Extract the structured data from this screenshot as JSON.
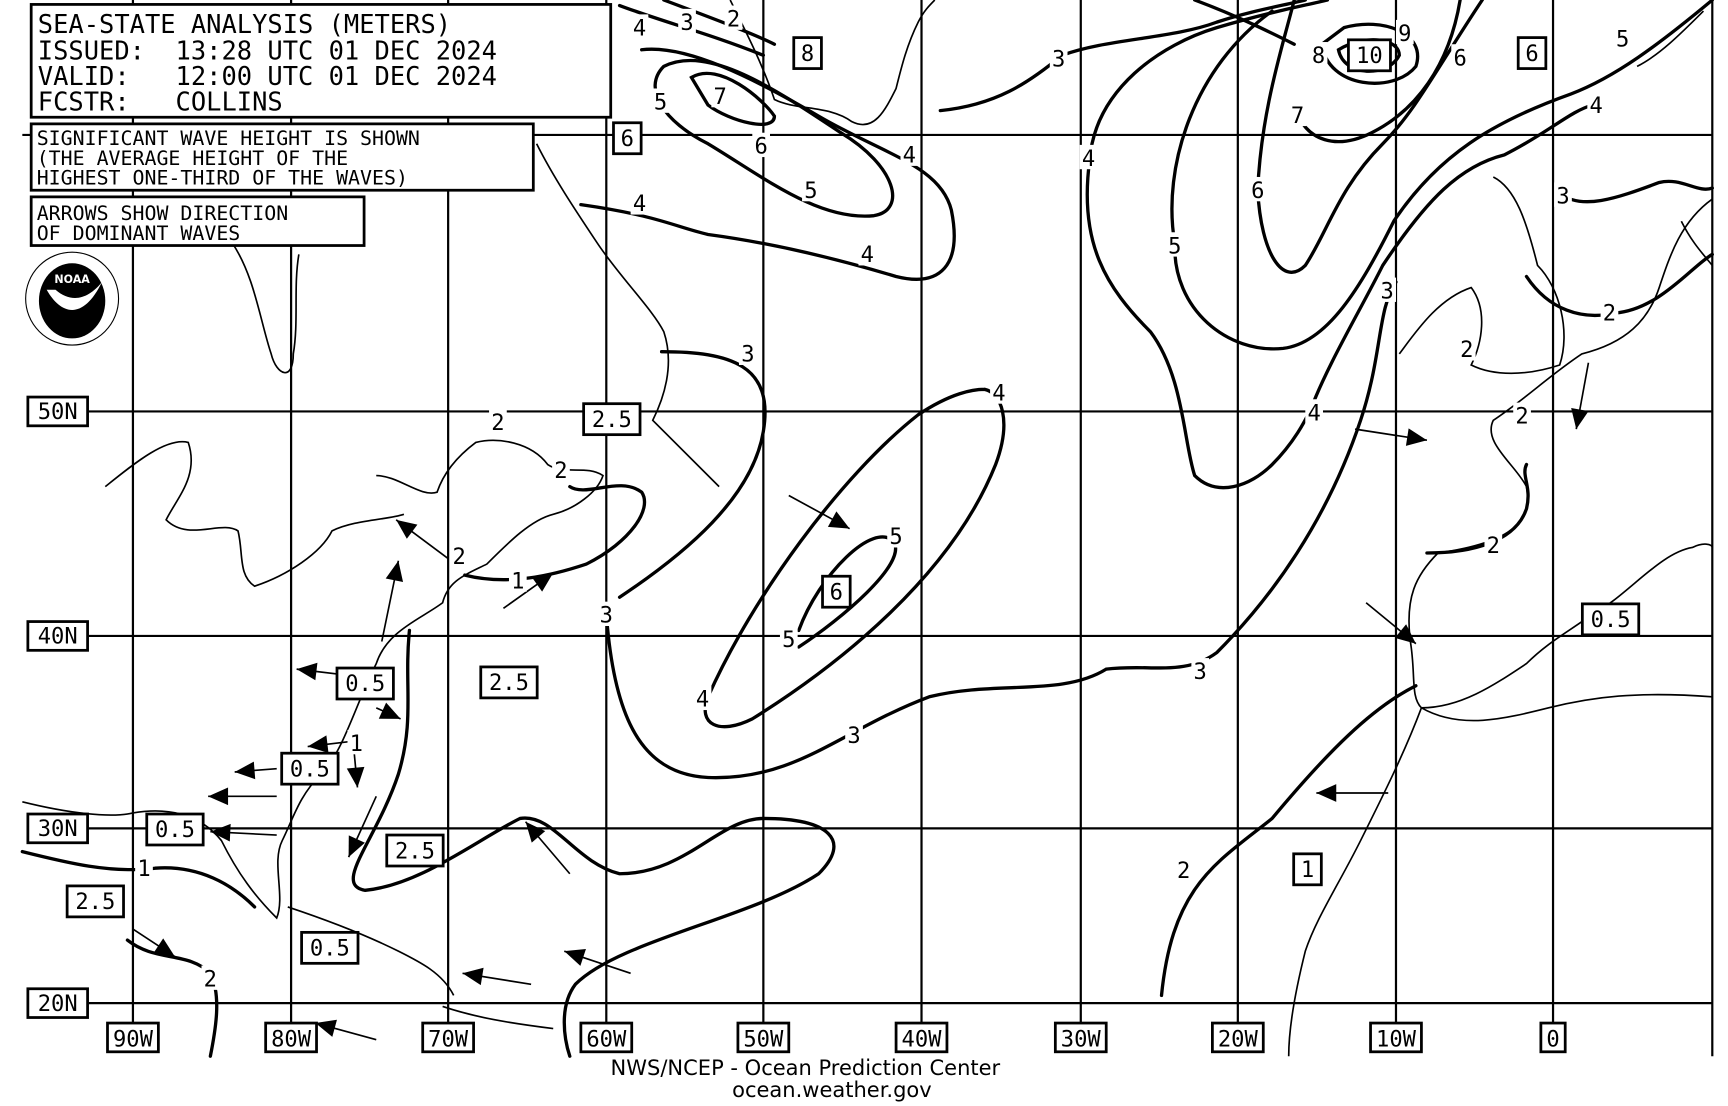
{
  "header": {
    "title": "SEA-STATE ANALYSIS (METERS)",
    "issued": "ISSUED:  13:28 UTC 01 DEC 2024",
    "valid": "VALID:   12:00 UTC 01 DEC 2024",
    "forecaster": "FCSTR:   COLLINS"
  },
  "notes": {
    "wave_height": [
      "SIGNIFICANT WAVE HEIGHT IS SHOWN",
      "(THE AVERAGE HEIGHT OF THE",
      "HIGHEST ONE-THIRD OF THE WAVES)"
    ],
    "arrows": [
      "ARROWS SHOW DIRECTION",
      "OF DOMINANT WAVES"
    ]
  },
  "logo": {
    "text": "NOAA",
    "ring": "NATIONAL OCEANIC AND ATMOSPHERIC ADMINISTRATION - U.S. DEPARTMENT OF COMMERCE"
  },
  "lat_labels": [
    "50N",
    "40N",
    "30N",
    "20N"
  ],
  "lon_labels": [
    "90W",
    "80W",
    "70W",
    "60W",
    "50W",
    "40W",
    "30W",
    "20W",
    "10W",
    "0"
  ],
  "contour_labels": [
    "4",
    "3",
    "2",
    "5",
    "7",
    "6",
    "5",
    "4",
    "4",
    "4",
    "3",
    "4",
    "5",
    "6",
    "7",
    "8",
    "9",
    "6",
    "5",
    "4",
    "3",
    "3",
    "2",
    "2",
    "4",
    "3",
    "4",
    "5",
    "5",
    "4",
    "3",
    "3",
    "3",
    "2",
    "2",
    "2",
    "2",
    "2",
    "1",
    "2",
    "1",
    "1",
    "2"
  ],
  "boxed_values": [
    "8",
    "10",
    "6",
    "6",
    "2.5",
    "6",
    "2.5",
    "0.5",
    "0.5",
    "0.5",
    "2.5",
    "2.5",
    "0.5",
    "0.5",
    "1"
  ],
  "footer": {
    "line1": "NWS/NCEP - Ocean Prediction Center",
    "line2": "ocean.weather.gov"
  }
}
